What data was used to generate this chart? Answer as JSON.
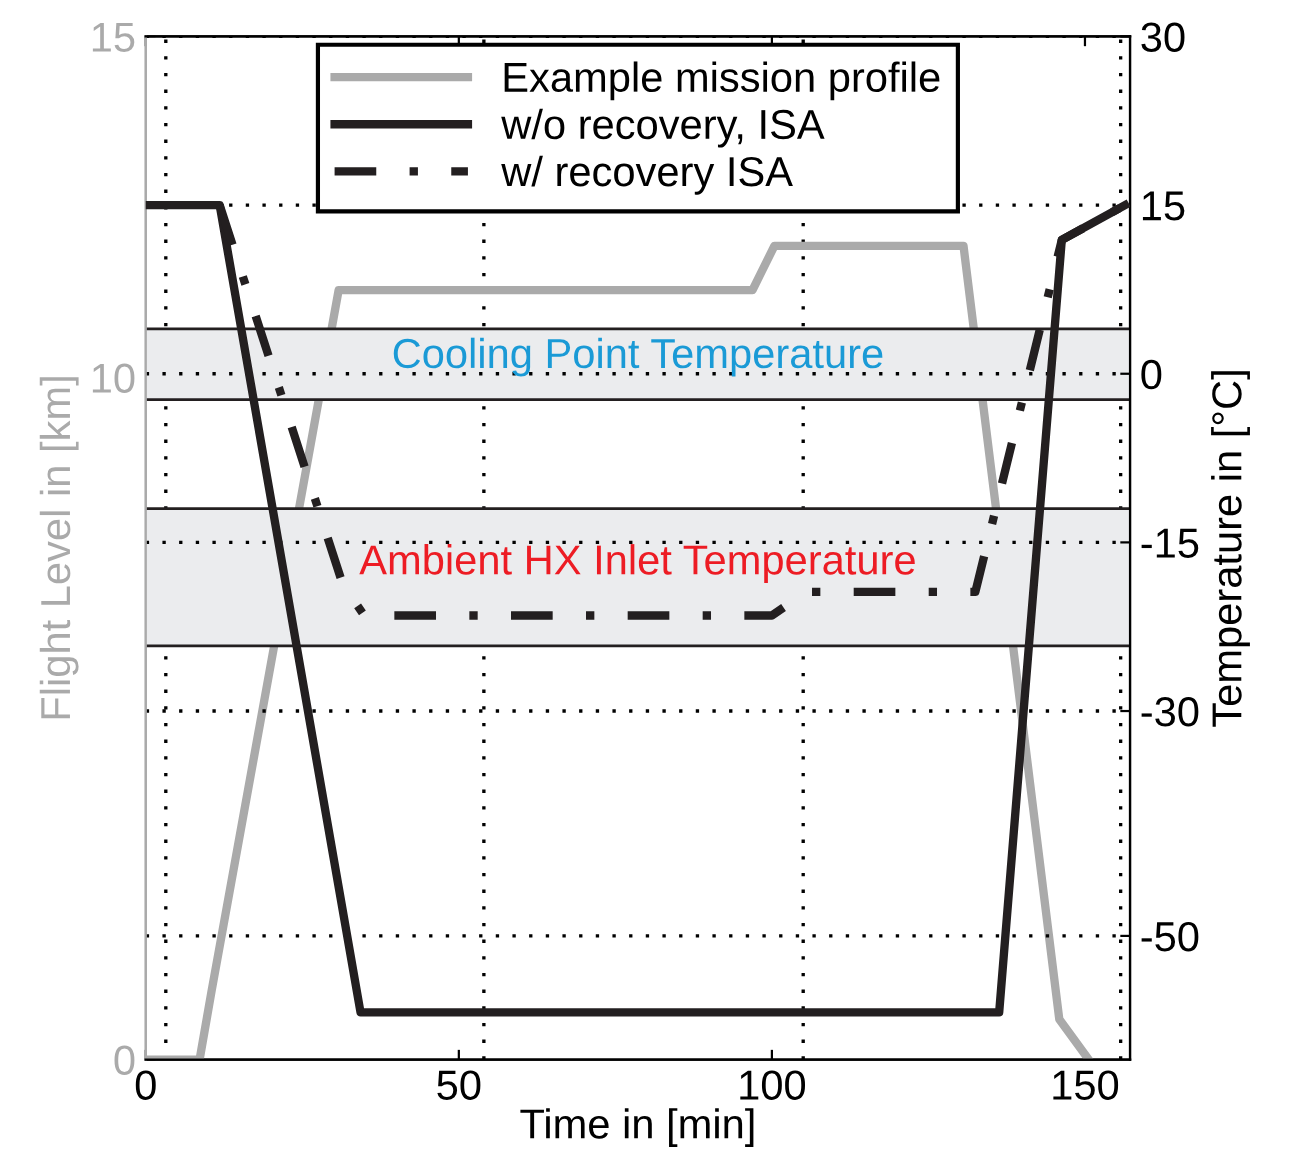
{
  "chart_data": {
    "type": "line",
    "xlabel": "Time in [min]",
    "ylabel": "Flight Level in [km]",
    "y2label": "Temperature in [°C]",
    "xlim": [
      0,
      157.2
    ],
    "xticks": [
      0,
      50,
      100,
      150
    ],
    "ylim": [
      0,
      15
    ],
    "yticks": [
      0,
      10,
      15
    ],
    "y2lim": [
      -61,
      30
    ],
    "y2ticks": [
      30,
      15,
      0,
      -15,
      -30,
      -50
    ],
    "ref_lines": [
      {
        "axis": "x",
        "value": 3.2,
        "line_style": "dotted",
        "color": "#000000"
      },
      {
        "axis": "x",
        "value": 54,
        "line_style": "dotted",
        "color": "#000000"
      },
      {
        "axis": "x",
        "value": 105,
        "line_style": "dotted",
        "color": "#000000"
      },
      {
        "axis": "x",
        "value": 155.7,
        "line_style": "dotted",
        "color": "#000000"
      }
    ],
    "grid": "y",
    "legend": "top",
    "marker": "none",
    "bands": [
      {
        "axis": "y2",
        "from": -2.3,
        "to": 4,
        "label": "Cooling Point Temperature",
        "color": "#ebecee"
      },
      {
        "axis": "y2",
        "from": -24.2,
        "to": -12,
        "label": "Ambient HX Inlet Temperature",
        "color": "#ebecee"
      }
    ],
    "series": [
      {
        "name": "Example mission profile",
        "color": "#aaaaaa",
        "line_style": "solid",
        "x": [
          0,
          8.6,
          10.5,
          30.8,
          96.9,
          100.4,
          130.6,
          145.9,
          150.6
        ],
        "values": [
          0,
          0,
          1,
          11.28,
          11.28,
          11.93,
          11.93,
          0.59,
          0
        ]
      },
      {
        "name": "w/o recovery, ISA",
        "color": "#231f20",
        "line_style": "solid",
        "axis": "y2",
        "x": [
          0,
          11.8,
          34.3,
          136.3,
          146.3,
          156.4
        ],
        "values": [
          15,
          15,
          -56.8,
          -56.8,
          11.9,
          15
        ]
      },
      {
        "name": "w/ recovery ISA",
        "color": "#231f20",
        "line_style": "dashdot",
        "axis": "y2",
        "x": [
          11.8,
          31.5,
          34.9,
          100,
          105.5,
          132.5,
          146.3,
          156.4
        ],
        "values": [
          15,
          -18.8,
          -21.5,
          -21.5,
          -19.4,
          -19.4,
          11.9,
          15
        ]
      }
    ]
  }
}
